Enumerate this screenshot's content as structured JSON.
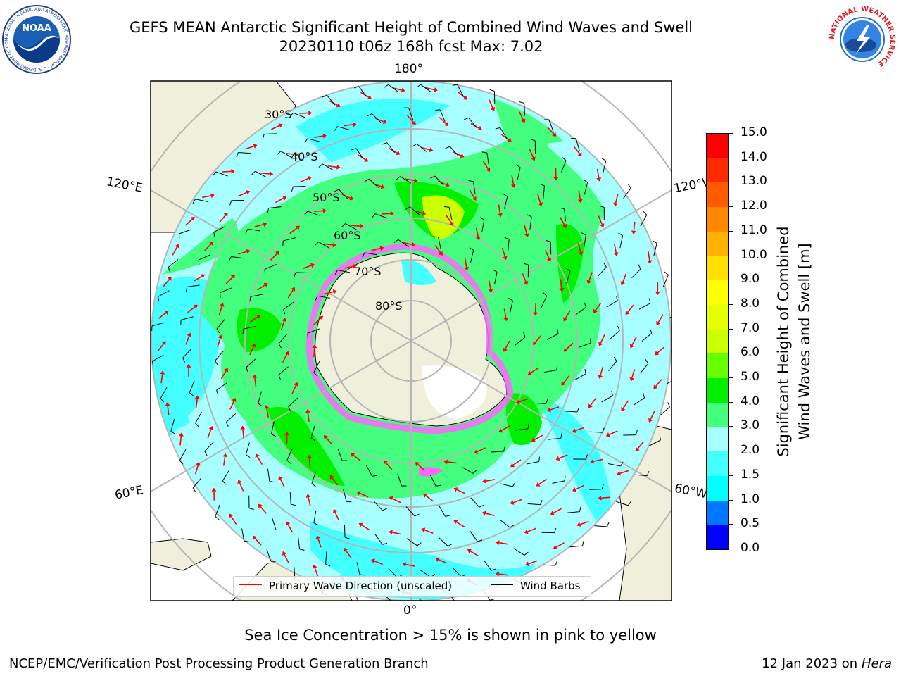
{
  "header": {
    "title_line1": "GEFS MEAN Antarctic Significant Height of Combined Wind Waves and Swell",
    "title_line2": "20230110 t06z 168h fcst   Max: 7.02"
  },
  "logos": {
    "left": {
      "name": "noaa-logo",
      "text": "NOAA",
      "ring_text": "NATIONAL OCEANIC AND ATMOSPHERIC ADMINISTRATION · U.S. DEPARTMENT OF COMMERCE"
    },
    "right": {
      "name": "nws-logo",
      "ring_text": "NATIONAL WEATHER SERVICE"
    }
  },
  "map": {
    "projection": "south polar stereographic",
    "longitude_labels": {
      "top": "180°",
      "upper_left": "120°E",
      "upper_right": "120°W",
      "lower_left": "60°E",
      "lower_right": "60°W",
      "bottom": "0°"
    },
    "latitude_labels": [
      "30°S",
      "40°S",
      "50°S",
      "60°S",
      "70°S",
      "80°S"
    ]
  },
  "legend": {
    "wave_direction": "Primary Wave Direction (unscaled)",
    "wind_barbs": "Wind Barbs",
    "wave_direction_color": "#ff0000",
    "wind_barb_color": "#000000"
  },
  "colorbar": {
    "title_line1": "Significant Height of Combined",
    "title_line2": "Wind Waves and Swell [m]",
    "levels": [
      0.0,
      0.5,
      1.0,
      1.5,
      2.0,
      3.0,
      4.0,
      5.0,
      6.0,
      7.0,
      8.0,
      9.0,
      10.0,
      11.0,
      12.0,
      13.0,
      14.0,
      15.0
    ],
    "tick_labels": [
      "0.0",
      "0.5",
      "1.0",
      "1.5",
      "2.0",
      "3.0",
      "4.0",
      "5.0",
      "6.0",
      "7.0",
      "8.0",
      "9.0",
      "10.0",
      "11.0",
      "12.0",
      "13.0",
      "14.0",
      "15.0"
    ],
    "colors": [
      "#0000ff",
      "#0077ff",
      "#00ffff",
      "#44ffff",
      "#a8ffff",
      "#44ff7d",
      "#00f000",
      "#66ff00",
      "#ccff00",
      "#e6ff00",
      "#ffff00",
      "#ffe000",
      "#ffb000",
      "#ff8800",
      "#ff5a00",
      "#ff2a00",
      "#ff0000"
    ]
  },
  "note": "Sea Ice Concentration > 15% is shown in pink to yellow",
  "footer": {
    "left": "NCEP/EMC/Verification Post Processing Product Generation Branch",
    "right_prefix": "12 Jan 2023 on ",
    "right_machine": "Hera"
  }
}
